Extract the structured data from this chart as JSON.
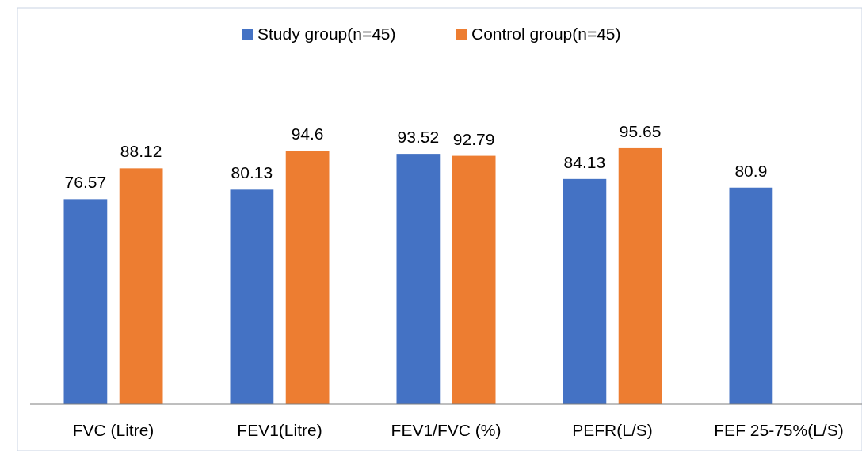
{
  "chart_data": {
    "type": "bar",
    "categories": [
      "FVC (Litre)",
      "FEV1(Litre)",
      "FEV1/FVC (%)",
      "PEFR(L/S)",
      "FEF 25-75%(L/S)"
    ],
    "series": [
      {
        "name": "Study group(n=45)",
        "color": "#4472c4",
        "values": [
          76.57,
          80.13,
          93.52,
          84.13,
          80.9
        ]
      },
      {
        "name": "Control group(n=45)",
        "color": "#ed7d31",
        "values": [
          88.12,
          94.6,
          92.79,
          95.65,
          null
        ]
      }
    ],
    "data_labels": true,
    "legend": "top",
    "grid": false
  }
}
